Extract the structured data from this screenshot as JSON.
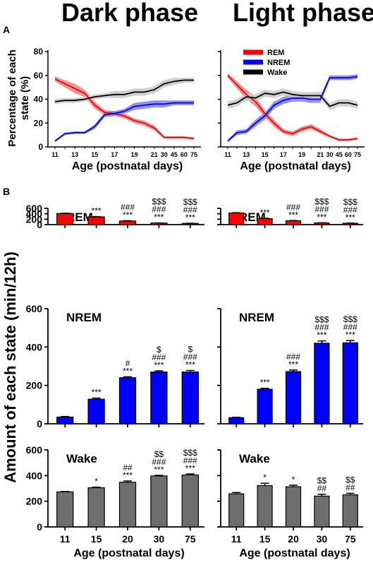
{
  "headings": {
    "dark": "Dark phase",
    "light": "Light phase"
  },
  "panel_letters": {
    "a": "A",
    "b": "B"
  },
  "colors": {
    "REM": "#ff0000",
    "NREM": "#0000ff",
    "Wake": "#000000",
    "wake_bar": "#6e6e6e"
  },
  "chart_data": [
    {
      "id": "A-dark",
      "type": "line",
      "title": "Dark phase",
      "xlabel": "Age (postnatal days)",
      "ylabel": "Percentage of each state (%)",
      "categories": [
        "11",
        "12",
        "13",
        "14",
        "15",
        "16",
        "17",
        "18",
        "19",
        "20",
        "21",
        "30",
        "45",
        "60",
        "75"
      ],
      "tick_labels": [
        "11",
        "13",
        "15",
        "17",
        "19",
        "21",
        "30",
        "45",
        "60",
        "75"
      ],
      "yticks": [
        0,
        20,
        40,
        60,
        80
      ],
      "ylim": [
        0,
        80
      ],
      "legend": [
        "REM",
        "NREM",
        "Wake"
      ],
      "legend_position": "top-right",
      "series": [
        {
          "name": "REM",
          "values": [
            57,
            53,
            49,
            45,
            35,
            29,
            28,
            26,
            22,
            20,
            16,
            8,
            8,
            8,
            7
          ],
          "sem": [
            2,
            3,
            4,
            3,
            3,
            2,
            2,
            2,
            2,
            2,
            2,
            1,
            1,
            1,
            1
          ]
        },
        {
          "name": "NREM",
          "values": [
            5,
            11,
            12,
            12,
            17,
            27,
            28,
            30,
            34,
            35,
            36,
            36,
            37,
            37,
            37
          ],
          "sem": [
            1,
            1,
            1,
            1,
            2,
            2,
            2,
            2,
            3,
            3,
            3,
            3,
            2,
            2,
            2
          ]
        },
        {
          "name": "Wake",
          "values": [
            38,
            39,
            39,
            40,
            42,
            43,
            44,
            44,
            46,
            46,
            48,
            53,
            55,
            56,
            56
          ],
          "sem": [
            2,
            2,
            2,
            2,
            2,
            2,
            3,
            3,
            3,
            3,
            3,
            3,
            3,
            2,
            2
          ]
        }
      ]
    },
    {
      "id": "A-light",
      "type": "line",
      "title": "Light phase",
      "xlabel": "Age (postnatal days)",
      "ylabel": "Percentage of each state (%)",
      "categories": [
        "11",
        "12",
        "13",
        "14",
        "15",
        "16",
        "17",
        "18",
        "19",
        "20",
        "21",
        "30",
        "45",
        "60",
        "75"
      ],
      "tick_labels": [
        "11",
        "13",
        "15",
        "17",
        "19",
        "21",
        "30",
        "45",
        "60",
        "75"
      ],
      "yticks": [
        0,
        20,
        40,
        60,
        80
      ],
      "ylim": [
        0,
        80
      ],
      "legend": [
        "REM",
        "NREM",
        "Wake"
      ],
      "legend_position": "top-left",
      "series": [
        {
          "name": "REM",
          "values": [
            60,
            52,
            44,
            38,
            28,
            20,
            13,
            11,
            15,
            17,
            13,
            9,
            6,
            6,
            7
          ],
          "sem": [
            2,
            3,
            4,
            4,
            3,
            3,
            2,
            2,
            2,
            2,
            2,
            1,
            1,
            1,
            1
          ]
        },
        {
          "name": "NREM",
          "values": [
            5,
            12,
            13,
            20,
            26,
            35,
            39,
            41,
            41,
            40,
            40,
            58,
            58,
            58,
            59
          ],
          "sem": [
            1,
            2,
            2,
            3,
            3,
            3,
            3,
            3,
            3,
            3,
            3,
            2,
            2,
            2,
            2
          ]
        },
        {
          "name": "Wake",
          "values": [
            35,
            37,
            42,
            41,
            45,
            44,
            46,
            44,
            43,
            43,
            43,
            34,
            37,
            37,
            35
          ],
          "sem": [
            3,
            3,
            3,
            3,
            3,
            3,
            3,
            3,
            3,
            3,
            3,
            3,
            3,
            3,
            3
          ]
        }
      ]
    },
    {
      "id": "B-dark-REM",
      "type": "bar",
      "title": "REM",
      "categories": [
        "11",
        "15",
        "20",
        "30",
        "75"
      ],
      "values": [
        410,
        285,
        133,
        57,
        45
      ],
      "sem": [
        10,
        10,
        12,
        6,
        5
      ],
      "sig": [
        [],
        [
          "***"
        ],
        [
          "###",
          "***"
        ],
        [
          "$$$",
          "###",
          "***"
        ],
        [
          "$$$",
          "###",
          "***"
        ]
      ],
      "ylim": [
        0,
        600
      ],
      "yticks": [
        0,
        200,
        400,
        600
      ],
      "color": "#ff0000"
    },
    {
      "id": "B-light-REM",
      "type": "bar",
      "title": "REM",
      "categories": [
        "11",
        "15",
        "20",
        "30",
        "75"
      ],
      "values": [
        430,
        220,
        140,
        63,
        50
      ],
      "sem": [
        10,
        15,
        10,
        6,
        5
      ],
      "sig": [
        [],
        [
          "***"
        ],
        [
          "###",
          "***"
        ],
        [
          "$$$",
          "###",
          "***"
        ],
        [
          "$$$",
          "###",
          "***"
        ]
      ],
      "ylim": [
        0,
        600
      ],
      "yticks": [
        0,
        200,
        400,
        600
      ],
      "color": "#ff0000"
    },
    {
      "id": "B-dark-NREM",
      "type": "bar",
      "title": "NREM",
      "categories": [
        "11",
        "15",
        "20",
        "30",
        "75"
      ],
      "values": [
        35,
        128,
        240,
        270,
        270
      ],
      "sem": [
        3,
        6,
        5,
        6,
        8
      ],
      "sig": [
        [],
        [
          "***"
        ],
        [
          "#",
          "***"
        ],
        [
          "$",
          "###",
          "***"
        ],
        [
          "$",
          "###",
          "***"
        ]
      ],
      "ylim": [
        0,
        600
      ],
      "yticks": [
        0,
        200,
        400,
        600
      ],
      "color": "#0000ff"
    },
    {
      "id": "B-light-NREM",
      "type": "bar",
      "title": "NREM",
      "categories": [
        "11",
        "15",
        "20",
        "30",
        "75"
      ],
      "values": [
        32,
        180,
        272,
        420,
        422
      ],
      "sem": [
        2,
        5,
        8,
        12,
        12
      ],
      "sig": [
        [],
        [
          "***"
        ],
        [
          "###",
          "***"
        ],
        [
          "$$$",
          "###",
          "***"
        ],
        [
          "$$$",
          "###",
          "***"
        ]
      ],
      "ylim": [
        0,
        600
      ],
      "yticks": [
        0,
        200,
        400,
        600
      ],
      "color": "#0000ff"
    },
    {
      "id": "B-dark-Wake",
      "type": "bar",
      "title": "Wake",
      "categories": [
        "11",
        "15",
        "20",
        "30",
        "75"
      ],
      "values": [
        273,
        305,
        348,
        397,
        405
      ],
      "sem": [
        3,
        5,
        10,
        5,
        8
      ],
      "sig": [
        [],
        [
          "*"
        ],
        [
          "##",
          "***"
        ],
        [
          "$$",
          "###",
          "***"
        ],
        [
          "$$$",
          "###",
          "***"
        ]
      ],
      "ylim": [
        0,
        600
      ],
      "yticks": [
        0,
        200,
        400,
        600
      ],
      "color": "#6e6e6e"
    },
    {
      "id": "B-light-Wake",
      "type": "bar",
      "title": "Wake",
      "categories": [
        "11",
        "15",
        "20",
        "30",
        "75"
      ],
      "values": [
        258,
        322,
        313,
        240,
        250
      ],
      "sem": [
        10,
        18,
        12,
        15,
        12
      ],
      "sig": [
        [],
        [
          "*"
        ],
        [
          "*"
        ],
        [
          "$$",
          "##"
        ],
        [
          "$$",
          "##"
        ]
      ],
      "ylim": [
        0,
        600
      ],
      "yticks": [
        0,
        200,
        400,
        600
      ],
      "color": "#6e6e6e"
    }
  ],
  "labels_b": {
    "ylabel": "Amount of each state (min/12h)",
    "xlabel": "Age (postnatal days)"
  }
}
